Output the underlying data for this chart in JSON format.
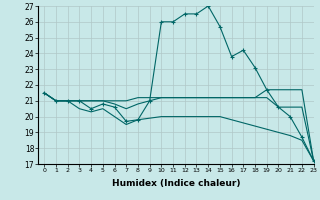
{
  "xlabel": "Humidex (Indice chaleur)",
  "background_color": "#c8e8e8",
  "grid_color": "#b0c8c8",
  "line_color": "#006666",
  "ylim": [
    17,
    27
  ],
  "xlim": [
    -0.5,
    23
  ],
  "yticks": [
    17,
    18,
    19,
    20,
    21,
    22,
    23,
    24,
    25,
    26,
    27
  ],
  "xticks": [
    0,
    1,
    2,
    3,
    4,
    5,
    6,
    7,
    8,
    9,
    10,
    11,
    12,
    13,
    14,
    15,
    16,
    17,
    18,
    19,
    20,
    21,
    22,
    23
  ],
  "series": [
    {
      "x": [
        0,
        1,
        2,
        3,
        4,
        5,
        6,
        7,
        8,
        9,
        10,
        11,
        12,
        13,
        14,
        15,
        16,
        17,
        18,
        19,
        20,
        21,
        22,
        23
      ],
      "y": [
        21.5,
        21.0,
        21.0,
        21.0,
        20.5,
        20.8,
        20.6,
        19.7,
        19.8,
        21.0,
        26.0,
        26.0,
        26.5,
        26.5,
        27.0,
        25.7,
        23.8,
        24.2,
        23.1,
        21.7,
        20.6,
        20.0,
        18.7,
        17.2
      ],
      "has_marker": true
    },
    {
      "x": [
        0,
        1,
        2,
        3,
        4,
        5,
        6,
        7,
        8,
        9,
        10,
        11,
        12,
        13,
        14,
        15,
        16,
        17,
        18,
        19,
        20,
        21,
        22,
        23
      ],
      "y": [
        21.5,
        21.0,
        21.0,
        21.0,
        21.0,
        21.0,
        21.0,
        21.0,
        21.2,
        21.2,
        21.2,
        21.2,
        21.2,
        21.2,
        21.2,
        21.2,
        21.2,
        21.2,
        21.2,
        21.7,
        21.7,
        21.7,
        21.7,
        17.2
      ],
      "has_marker": false
    },
    {
      "x": [
        0,
        1,
        2,
        3,
        4,
        5,
        6,
        7,
        8,
        9,
        10,
        11,
        12,
        13,
        14,
        15,
        16,
        17,
        18,
        19,
        20,
        21,
        22,
        23
      ],
      "y": [
        21.5,
        21.0,
        21.0,
        21.0,
        21.0,
        21.0,
        20.8,
        20.5,
        20.8,
        21.0,
        21.2,
        21.2,
        21.2,
        21.2,
        21.2,
        21.2,
        21.2,
        21.2,
        21.2,
        21.2,
        20.6,
        20.6,
        20.6,
        17.2
      ],
      "has_marker": false
    },
    {
      "x": [
        0,
        1,
        2,
        3,
        4,
        5,
        6,
        7,
        8,
        9,
        10,
        11,
        12,
        13,
        14,
        15,
        16,
        17,
        18,
        19,
        20,
        21,
        22,
        23
      ],
      "y": [
        21.5,
        21.0,
        21.0,
        20.5,
        20.3,
        20.5,
        20.0,
        19.5,
        19.8,
        19.9,
        20.0,
        20.0,
        20.0,
        20.0,
        20.0,
        20.0,
        19.8,
        19.6,
        19.4,
        19.2,
        19.0,
        18.8,
        18.5,
        17.2
      ],
      "has_marker": false
    }
  ]
}
